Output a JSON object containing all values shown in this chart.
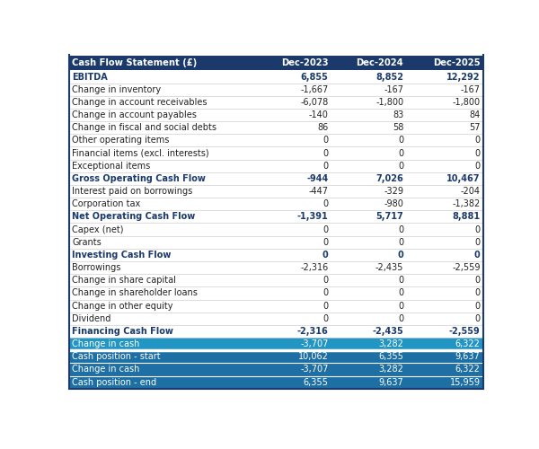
{
  "columns": [
    "Cash Flow Statement (£)",
    "Dec-2023",
    "Dec-2024",
    "Dec-2025"
  ],
  "rows": [
    {
      "label": "EBITDA",
      "values": [
        "6,855",
        "8,852",
        "12,292"
      ],
      "style": "bold_blue",
      "bg": "white"
    },
    {
      "label": "Change in inventory",
      "values": [
        "-1,667",
        "-167",
        "-167"
      ],
      "style": "normal",
      "bg": "white"
    },
    {
      "label": "Change in account receivables",
      "values": [
        "-6,078",
        "-1,800",
        "-1,800"
      ],
      "style": "normal",
      "bg": "white"
    },
    {
      "label": "Change in account payables",
      "values": [
        "-140",
        "83",
        "84"
      ],
      "style": "normal",
      "bg": "white"
    },
    {
      "label": "Change in fiscal and social debts",
      "values": [
        "86",
        "58",
        "57"
      ],
      "style": "normal",
      "bg": "white"
    },
    {
      "label": "Other operating items",
      "values": [
        "0",
        "0",
        "0"
      ],
      "style": "normal",
      "bg": "white"
    },
    {
      "label": "Financial items (excl. interests)",
      "values": [
        "0",
        "0",
        "0"
      ],
      "style": "normal",
      "bg": "white"
    },
    {
      "label": "Exceptional items",
      "values": [
        "0",
        "0",
        "0"
      ],
      "style": "normal",
      "bg": "white"
    },
    {
      "label": "Gross Operating Cash Flow",
      "values": [
        "-944",
        "7,026",
        "10,467"
      ],
      "style": "bold_blue",
      "bg": "white"
    },
    {
      "label": "Interest paid on borrowings",
      "values": [
        "-447",
        "-329",
        "-204"
      ],
      "style": "normal",
      "bg": "white"
    },
    {
      "label": "Corporation tax",
      "values": [
        "0",
        "-980",
        "-1,382"
      ],
      "style": "normal",
      "bg": "white"
    },
    {
      "label": "Net Operating Cash Flow",
      "values": [
        "-1,391",
        "5,717",
        "8,881"
      ],
      "style": "bold_blue",
      "bg": "white"
    },
    {
      "label": "Capex (net)",
      "values": [
        "0",
        "0",
        "0"
      ],
      "style": "normal",
      "bg": "white"
    },
    {
      "label": "Grants",
      "values": [
        "0",
        "0",
        "0"
      ],
      "style": "normal",
      "bg": "white"
    },
    {
      "label": "Investing Cash Flow",
      "values": [
        "0",
        "0",
        "0"
      ],
      "style": "bold_blue",
      "bg": "white"
    },
    {
      "label": "Borrowings",
      "values": [
        "-2,316",
        "-2,435",
        "-2,559"
      ],
      "style": "normal",
      "bg": "white"
    },
    {
      "label": "Change in share capital",
      "values": [
        "0",
        "0",
        "0"
      ],
      "style": "normal",
      "bg": "white"
    },
    {
      "label": "Change in shareholder loans",
      "values": [
        "0",
        "0",
        "0"
      ],
      "style": "normal",
      "bg": "white"
    },
    {
      "label": "Change in other equity",
      "values": [
        "0",
        "0",
        "0"
      ],
      "style": "normal",
      "bg": "white"
    },
    {
      "label": "Dividend",
      "values": [
        "0",
        "0",
        "0"
      ],
      "style": "normal",
      "bg": "white"
    },
    {
      "label": "Financing Cash Flow",
      "values": [
        "-2,316",
        "-2,435",
        "-2,559"
      ],
      "style": "bold_blue",
      "bg": "white"
    },
    {
      "label": "Change in cash",
      "values": [
        "-3,707",
        "3,282",
        "6,322"
      ],
      "style": "white_normal",
      "bg": "#2196C4"
    },
    {
      "label": "Cash position - start",
      "values": [
        "10,062",
        "6,355",
        "9,637"
      ],
      "style": "white_normal",
      "bg": "#1D6FA4"
    },
    {
      "label": "Change in cash",
      "values": [
        "-3,707",
        "3,282",
        "6,322"
      ],
      "style": "white_normal",
      "bg": "#1D6FA4"
    },
    {
      "label": "Cash position - end",
      "values": [
        "6,355",
        "9,637",
        "15,959"
      ],
      "style": "white_normal",
      "bg": "#1D6FA4"
    }
  ],
  "header_bg": "#1B3A6B",
  "header_text_color": "#FFFFFF",
  "bold_blue_color": "#1B3A6B",
  "normal_text_color": "#222222",
  "white_text_color": "#FFFFFF",
  "separator_color": "#D0D0D0",
  "change_in_cash_bg": "#2196C4",
  "bottom_section_bg": "#1D6FA4",
  "outer_border_color": "#1B3A6B"
}
